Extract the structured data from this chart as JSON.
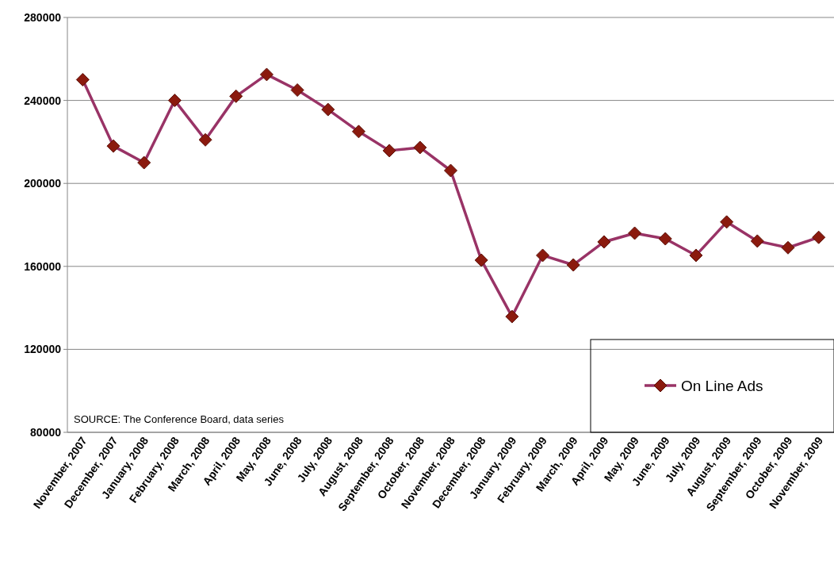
{
  "chart_data": {
    "type": "line",
    "categories": [
      "November, 2007",
      "December, 2007",
      "January, 2008",
      "February, 2008",
      "March, 2008",
      "April, 2008",
      "May, 2008",
      "June, 2008",
      "July, 2008",
      "August, 2008",
      "September, 2008",
      "October, 2008",
      "November, 2008",
      "December, 2008",
      "January, 2009",
      "February, 2009",
      "March, 2009",
      "April, 2009",
      "May, 2009",
      "June, 2009",
      "July, 2009",
      "August, 2009",
      "September, 2009",
      "October, 2009",
      "November, 2009"
    ],
    "series": [
      {
        "name": "On Line Ads",
        "color": "#993366",
        "values": [
          250000,
          218000,
          210000,
          240000,
          221000,
          242000,
          252500,
          245000,
          235600,
          225000,
          215800,
          217300,
          206200,
          163000,
          135800,
          165300,
          160700,
          171800,
          176000,
          173300,
          165300,
          181400,
          172200,
          169000,
          174000
        ]
      }
    ],
    "ylim": [
      80000,
      280000
    ],
    "yticks": [
      80000,
      120000,
      160000,
      200000,
      240000,
      280000
    ],
    "grid": "y",
    "legend": "bottom right",
    "marker": "diamond",
    "line_style": "solid",
    "annotations": [
      "SOURCE: The Conference Board, data series"
    ]
  }
}
